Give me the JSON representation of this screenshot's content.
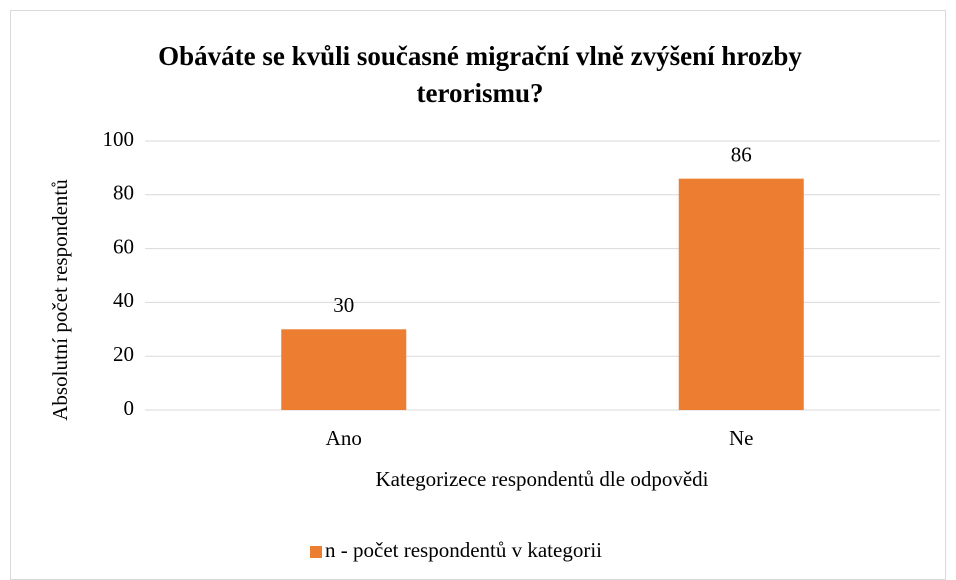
{
  "chart_data": {
    "type": "bar",
    "title": "Obáváte se kvůli současné migrační vlně zvýšení hrozby terorismu?",
    "x_label": "Kategorizece respondentů dle odpovědi",
    "y_label": "Absolutní počet respondentů",
    "categories": [
      "Ano",
      "Ne"
    ],
    "series": [
      {
        "name": "n - počet respondentů v kategorii",
        "color": "#ed7d31",
        "values": [
          30,
          86
        ]
      }
    ],
    "ylim": [
      0,
      100
    ],
    "yticks": [
      0,
      20,
      40,
      60,
      80,
      100
    ],
    "grid": true,
    "legend": "bottom",
    "data_labels": true
  }
}
